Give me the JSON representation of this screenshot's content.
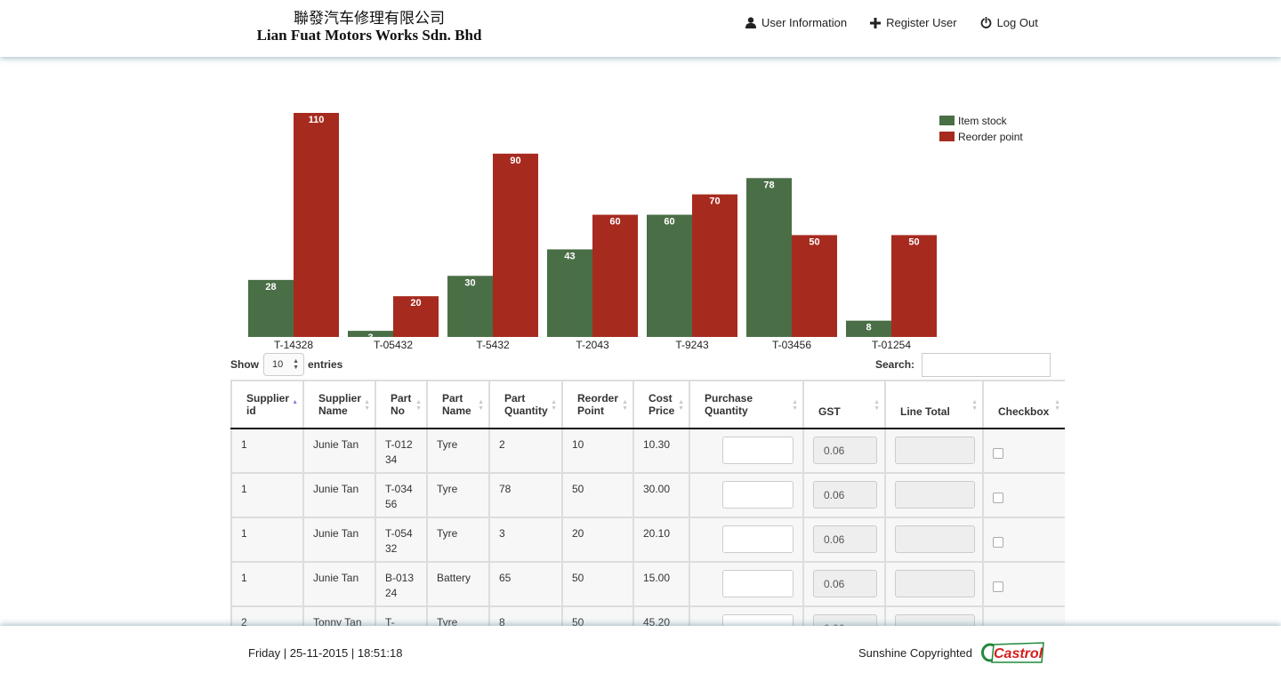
{
  "header": {
    "brand_cn": "聯發汽车修理有限公司",
    "brand_en": "Lian Fuat Motors Works Sdn. Bhd",
    "nav": {
      "user_info": "User Information",
      "register": "Register User",
      "logout": "Log Out"
    }
  },
  "chart_data": {
    "type": "bar",
    "categories": [
      "T-14328",
      "T-05432",
      "T-5432",
      "T-2043",
      "T-9243",
      "T-03456",
      "T-01254"
    ],
    "series": [
      {
        "name": "Item stock",
        "color": "#4a6e46",
        "values": [
          28,
          3,
          30,
          43,
          60,
          78,
          8
        ]
      },
      {
        "name": "Reorder point",
        "color": "#a72a1f",
        "values": [
          110,
          20,
          90,
          60,
          70,
          50,
          50
        ]
      }
    ],
    "ylim": [
      0,
      110
    ],
    "legend_position": "top-right",
    "grid": false
  },
  "controls": {
    "show_label": "Show",
    "entries_value": "10",
    "entries_label": "entries",
    "search_label": "Search:",
    "search_value": ""
  },
  "table": {
    "headers": {
      "supplier_id": [
        "Supplier",
        "id"
      ],
      "supplier_name": [
        "Supplier",
        "Name"
      ],
      "part_no": [
        "Part",
        "No"
      ],
      "part_name": [
        "Part",
        "Name"
      ],
      "part_quantity": [
        "Part",
        "Quantity"
      ],
      "reorder_point": [
        "Reorder",
        "Point"
      ],
      "cost_price": [
        "Cost",
        "Price"
      ],
      "purchase_quantity": [
        "Purchase",
        "Quantity"
      ],
      "gst": "GST",
      "line_total": "Line Total",
      "checkbox": "Checkbox"
    },
    "rows": [
      {
        "supplier_id": "1",
        "supplier_name": "Junie Tan",
        "part_no": "T-01234",
        "part_name": "Tyre",
        "part_quantity": "2",
        "reorder_point": "10",
        "cost_price": "10.30",
        "gst": "0.06"
      },
      {
        "supplier_id": "1",
        "supplier_name": "Junie Tan",
        "part_no": "T-03456",
        "part_name": "Tyre",
        "part_quantity": "78",
        "reorder_point": "50",
        "cost_price": "30.00",
        "gst": "0.06"
      },
      {
        "supplier_id": "1",
        "supplier_name": "Junie Tan",
        "part_no": "T-05432",
        "part_name": "Tyre",
        "part_quantity": "3",
        "reorder_point": "20",
        "cost_price": "20.10",
        "gst": "0.06"
      },
      {
        "supplier_id": "1",
        "supplier_name": "Junie Tan",
        "part_no": "B-01324",
        "part_name": "Battery",
        "part_quantity": "65",
        "reorder_point": "50",
        "cost_price": "15.00",
        "gst": "0.06"
      },
      {
        "supplier_id": "2",
        "supplier_name": "Tonny Tan",
        "part_no": "T-",
        "part_name": "Tyre",
        "part_quantity": "8",
        "reorder_point": "50",
        "cost_price": "45.20",
        "gst": "0.06"
      }
    ]
  },
  "footer": {
    "datetime": "Friday | 25-11-2015 | 18:51:18",
    "copyright": "Sunshine Copyrighted",
    "logo_text": "Castrol"
  }
}
